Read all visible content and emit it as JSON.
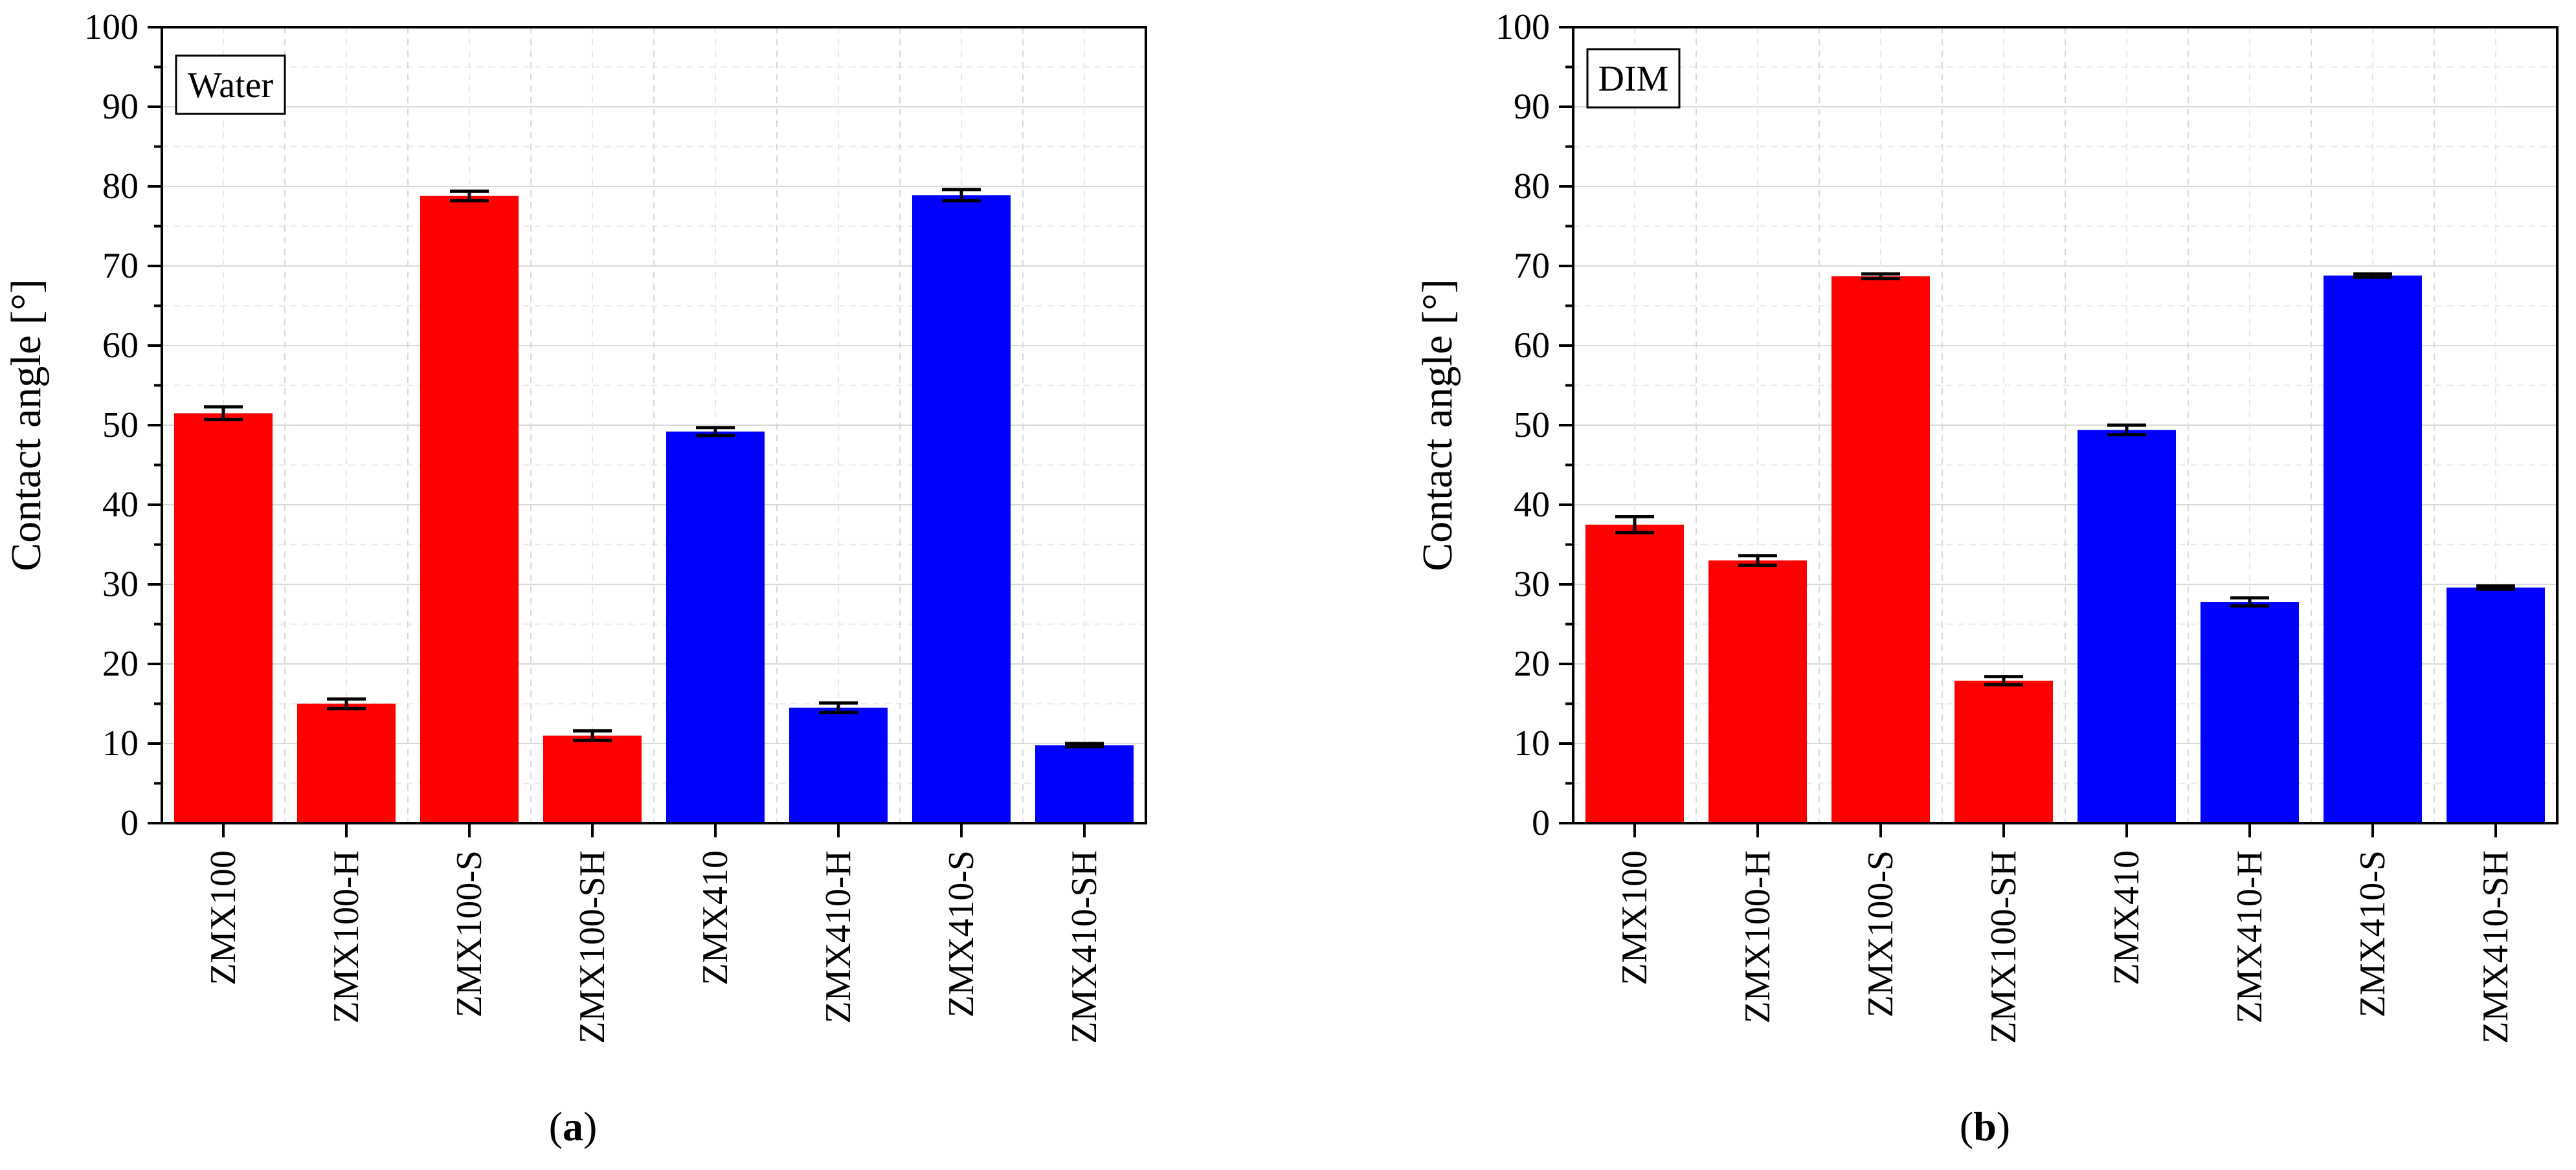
{
  "chart_data": [
    {
      "panel_label": "a",
      "type": "bar",
      "legend_box": "Water",
      "ylabel": "Contact angle [°]",
      "ylim": [
        0,
        100
      ],
      "yticks": [
        0,
        10,
        20,
        30,
        40,
        50,
        60,
        70,
        80,
        90,
        100
      ],
      "grid": true,
      "categories": [
        "ZMX100",
        "ZMX100-H",
        "ZMX100-S",
        "ZMX100-SH",
        "ZMX410",
        "ZMX410-H",
        "ZMX410-S",
        "ZMX410-SH"
      ],
      "values": [
        51.5,
        15.0,
        78.8,
        11.0,
        49.2,
        14.5,
        78.9,
        9.8
      ],
      "errors": [
        0.8,
        0.6,
        0.6,
        0.6,
        0.5,
        0.6,
        0.7,
        0.2
      ],
      "bar_colors": [
        "#ff0000",
        "#ff0000",
        "#ff0000",
        "#ff0000",
        "#0000ff",
        "#0000ff",
        "#0000ff",
        "#0000ff"
      ]
    },
    {
      "panel_label": "b",
      "type": "bar",
      "legend_box": "DIM",
      "ylabel": "Contact angle [°]",
      "ylim": [
        0,
        100
      ],
      "yticks": [
        0,
        10,
        20,
        30,
        40,
        50,
        60,
        70,
        80,
        90,
        100
      ],
      "grid": true,
      "categories": [
        "ZMX100",
        "ZMX100-H",
        "ZMX100-S",
        "ZMX100-SH",
        "ZMX410",
        "ZMX410-H",
        "ZMX410-S",
        "ZMX410-SH"
      ],
      "values": [
        37.5,
        33.0,
        68.7,
        17.9,
        49.4,
        27.8,
        68.8,
        29.6
      ],
      "errors": [
        1.0,
        0.6,
        0.3,
        0.5,
        0.6,
        0.5,
        0.2,
        0.2
      ],
      "bar_colors": [
        "#ff0000",
        "#ff0000",
        "#ff0000",
        "#ff0000",
        "#0000ff",
        "#0000ff",
        "#0000ff",
        "#0000ff"
      ]
    }
  ],
  "captions": {
    "a_open": "(",
    "a": "a",
    "a_close": ")",
    "b_open": "(",
    "b": "b",
    "b_close": ")"
  }
}
